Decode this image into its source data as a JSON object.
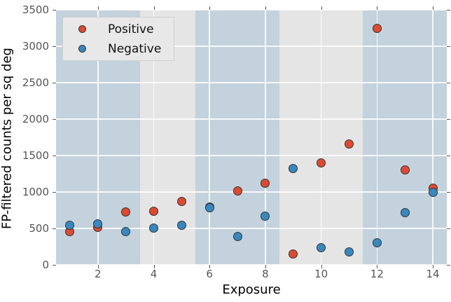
{
  "chart_data": {
    "type": "scatter",
    "title": "",
    "xlabel": "Exposure",
    "ylabel": "FP-filtered counts per sq deg",
    "xlim": [
      0.5,
      14.5
    ],
    "ylim": [
      0,
      3500
    ],
    "x_ticks": [
      2,
      4,
      6,
      8,
      10,
      12,
      14
    ],
    "y_ticks": [
      0,
      500,
      1000,
      1500,
      2000,
      2500,
      3000,
      3500
    ],
    "grid": true,
    "grid_color": "#ffffff",
    "legend_position": "upper left",
    "x": [
      1,
      2,
      3,
      4,
      5,
      6,
      7,
      8,
      9,
      10,
      11,
      12,
      13,
      14
    ],
    "series": [
      {
        "name": "Positive",
        "color": "#dc4a32",
        "edge_color": "#353535",
        "values": [
          460,
          510,
          730,
          740,
          875,
          795,
          1010,
          1120,
          145,
          1400,
          1660,
          3250,
          1305,
          1050
        ]
      },
      {
        "name": "Negative",
        "color": "#3887bd",
        "edge_color": "#353535",
        "values": [
          545,
          560,
          455,
          505,
          545,
          785,
          390,
          670,
          1325,
          240,
          180,
          300,
          715,
          1000
        ]
      }
    ],
    "background_bands": [
      {
        "x_from": 0.5,
        "x_to": 3.5,
        "color": "#c3d2dc"
      },
      {
        "x_from": 3.5,
        "x_to": 5.5,
        "color": "#e5e5e5"
      },
      {
        "x_from": 5.5,
        "x_to": 8.5,
        "color": "#c3d2dc"
      },
      {
        "x_from": 8.5,
        "x_to": 11.5,
        "color": "#e5e5e5"
      },
      {
        "x_from": 11.5,
        "x_to": 14.5,
        "color": "#c3d2dc"
      }
    ]
  }
}
